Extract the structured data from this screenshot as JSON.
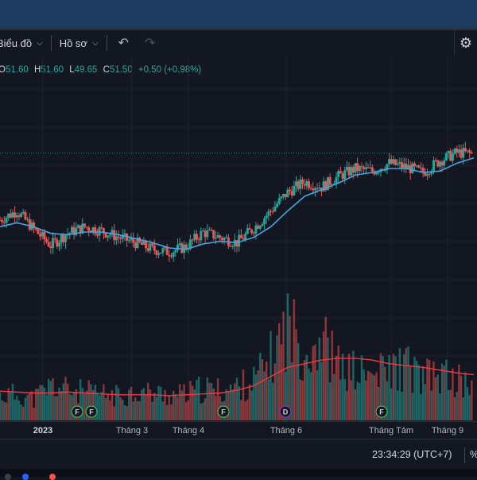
{
  "toolbar": {
    "chart_label": "Biểu đồ",
    "profile_label": "Hồ sơ",
    "undo_icon": "undo-icon",
    "redo_icon": "redo-icon",
    "settings_icon": "gear-icon"
  },
  "ohlc": {
    "o_label": "O",
    "o_value": "51.60",
    "h_label": "H",
    "h_value": "51.60",
    "l_label": "L",
    "l_value": "49.65",
    "c_label": "C",
    "c_value": "51.50",
    "change": "+0.50 (+0.98%)"
  },
  "colors": {
    "background": "#131722",
    "up": "#26a69a",
    "down": "#ef5350",
    "ma_price": "#4aa3df",
    "ma_volume": "#f23645",
    "marker_f": "#4caf50",
    "marker_d": "#9c27b0"
  },
  "time_axis": {
    "labels": [
      "2023",
      "Tháng 3",
      "Tháng 4",
      "Tháng 6",
      "Tháng Tám",
      "Tháng 9"
    ]
  },
  "events": {
    "markers": [
      "F",
      "F",
      "F",
      "D",
      "F"
    ]
  },
  "status": {
    "clock": "23:34:29 (UTC+7)",
    "percent_label": "%"
  },
  "chart_data": {
    "type": "candlestick",
    "x_labels": [
      "2023",
      "Tháng 3",
      "Tháng 4",
      "Tháng 6",
      "Tháng Tám",
      "Tháng 9"
    ],
    "last_close": 51.5,
    "series": [
      {
        "values": [
          46.5,
          47.2,
          45.8,
          44.6,
          45.5,
          46.0,
          45.7,
          45.2,
          44.8,
          44.3,
          44.1,
          44.5,
          45.6,
          45.2,
          44.8,
          45.9,
          47.2,
          48.6,
          49.4,
          49.0,
          49.8,
          50.4,
          50.2,
          50.8,
          50.5,
          50.1,
          51.0,
          51.6,
          51.5
        ]
      },
      {
        "values": [
          46.0,
          46.3,
          46.0,
          45.5,
          45.4,
          45.6,
          45.6,
          45.4,
          45.1,
          44.8,
          44.4,
          44.3,
          44.7,
          44.9,
          44.8,
          45.2,
          46.0,
          47.2,
          48.3,
          48.8,
          49.3,
          49.9,
          50.1,
          50.4,
          50.4,
          50.1,
          50.2,
          50.8,
          51.2
        ]
      }
    ],
    "volume": {
      "values": [
        28,
        30,
        25,
        40,
        35,
        32,
        30,
        28,
        33,
        31,
        29,
        30,
        36,
        34,
        38,
        45,
        70,
        110,
        80,
        95,
        60,
        55,
        50,
        58,
        62,
        48,
        52,
        45,
        40
      ],
      "ma": [
        32,
        31,
        30,
        30,
        31,
        30,
        29,
        28,
        28,
        28,
        27,
        28,
        29,
        30,
        33,
        38,
        48,
        58,
        62,
        66,
        68,
        68,
        66,
        62,
        60,
        58,
        55,
        52,
        50
      ]
    }
  }
}
